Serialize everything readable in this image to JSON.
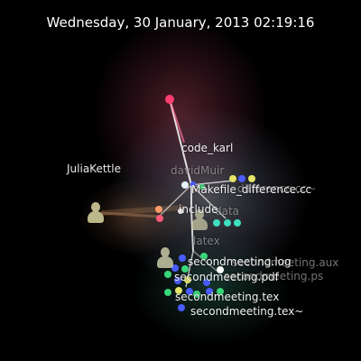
{
  "datetime": "Wednesday, 30 January, 2013 02:19:16",
  "users": {
    "julia": "JuliaKettle",
    "david": "davidMuir"
  },
  "labels": {
    "code_karl": "code_karl",
    "makefile_difference": "Makefile_difference.cc",
    "difference_cc_backup": "difference.cc~",
    "data": "data",
    "include": "include",
    "latex": "latex",
    "log": "secondmeeting.log",
    "aux": "secondmeeting.aux",
    "pdf": "secondmeeting.pdf",
    "ps": "secondmeeting.ps",
    "tex": "secondmeeting.tex",
    "tex_backup": "secondmeeting.tex~"
  },
  "colors": {
    "background": "#000000",
    "edge": "#ffffff",
    "red_node": "#ff3d6e",
    "yellow_node": "#e4e46a",
    "blue_node": "#4a5cff",
    "green_node": "#39d67a",
    "teal_node": "#3ee0c0",
    "orange_node": "#ff9b6b",
    "pink_node": "#ff5a7a",
    "avatar_julia": "#bdb88a",
    "avatar_other": "#c9c9a6"
  }
}
